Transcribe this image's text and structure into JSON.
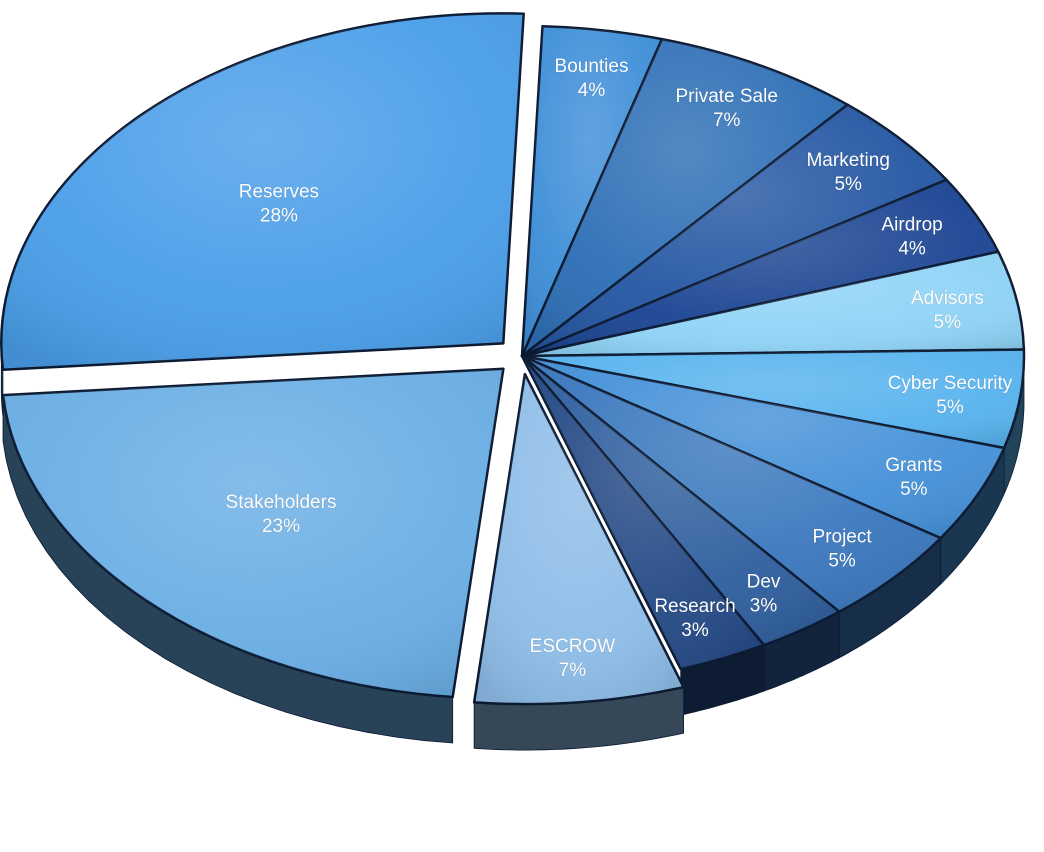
{
  "chart_data": {
    "type": "pie",
    "title": "",
    "slices": [
      {
        "label": "Bounties",
        "pct_text": "4%",
        "value": 4,
        "color": "#3f8fd8"
      },
      {
        "label": "Private Sale",
        "pct_text": "7%",
        "value": 7,
        "color": "#2e6fb6"
      },
      {
        "label": "Marketing",
        "pct_text": "5%",
        "value": 5,
        "color": "#2557a3"
      },
      {
        "label": "Airdrop",
        "pct_text": "4%",
        "value": 4,
        "color": "#1c4593"
      },
      {
        "label": "Advisors",
        "pct_text": "5%",
        "value": 5,
        "color": "#8fd3f6"
      },
      {
        "label": "Cyber Security",
        "pct_text": "5%",
        "value": 5,
        "color": "#58b3ee"
      },
      {
        "label": "Grants",
        "pct_text": "5%",
        "value": 5,
        "color": "#4591d8"
      },
      {
        "label": "Project",
        "pct_text": "5%",
        "value": 5,
        "color": "#3b78be"
      },
      {
        "label": "Dev",
        "pct_text": "3%",
        "value": 3,
        "color": "#2f5f9e"
      },
      {
        "label": "Research",
        "pct_text": "3%",
        "value": 3,
        "color": "#254a86"
      },
      {
        "label": "ESCROW",
        "pct_text": "7%",
        "value": 7,
        "color": "#8ebde8"
      },
      {
        "label": "Stakeholders",
        "pct_text": "23%",
        "value": 23,
        "color": "#6aaee5"
      },
      {
        "label": "Reserves",
        "pct_text": "28%",
        "value": 28,
        "color": "#4a9ee9"
      }
    ],
    "exploded": [
      "Reserves",
      "Stakeholders",
      "ESCROW"
    ],
    "legend": "none"
  }
}
